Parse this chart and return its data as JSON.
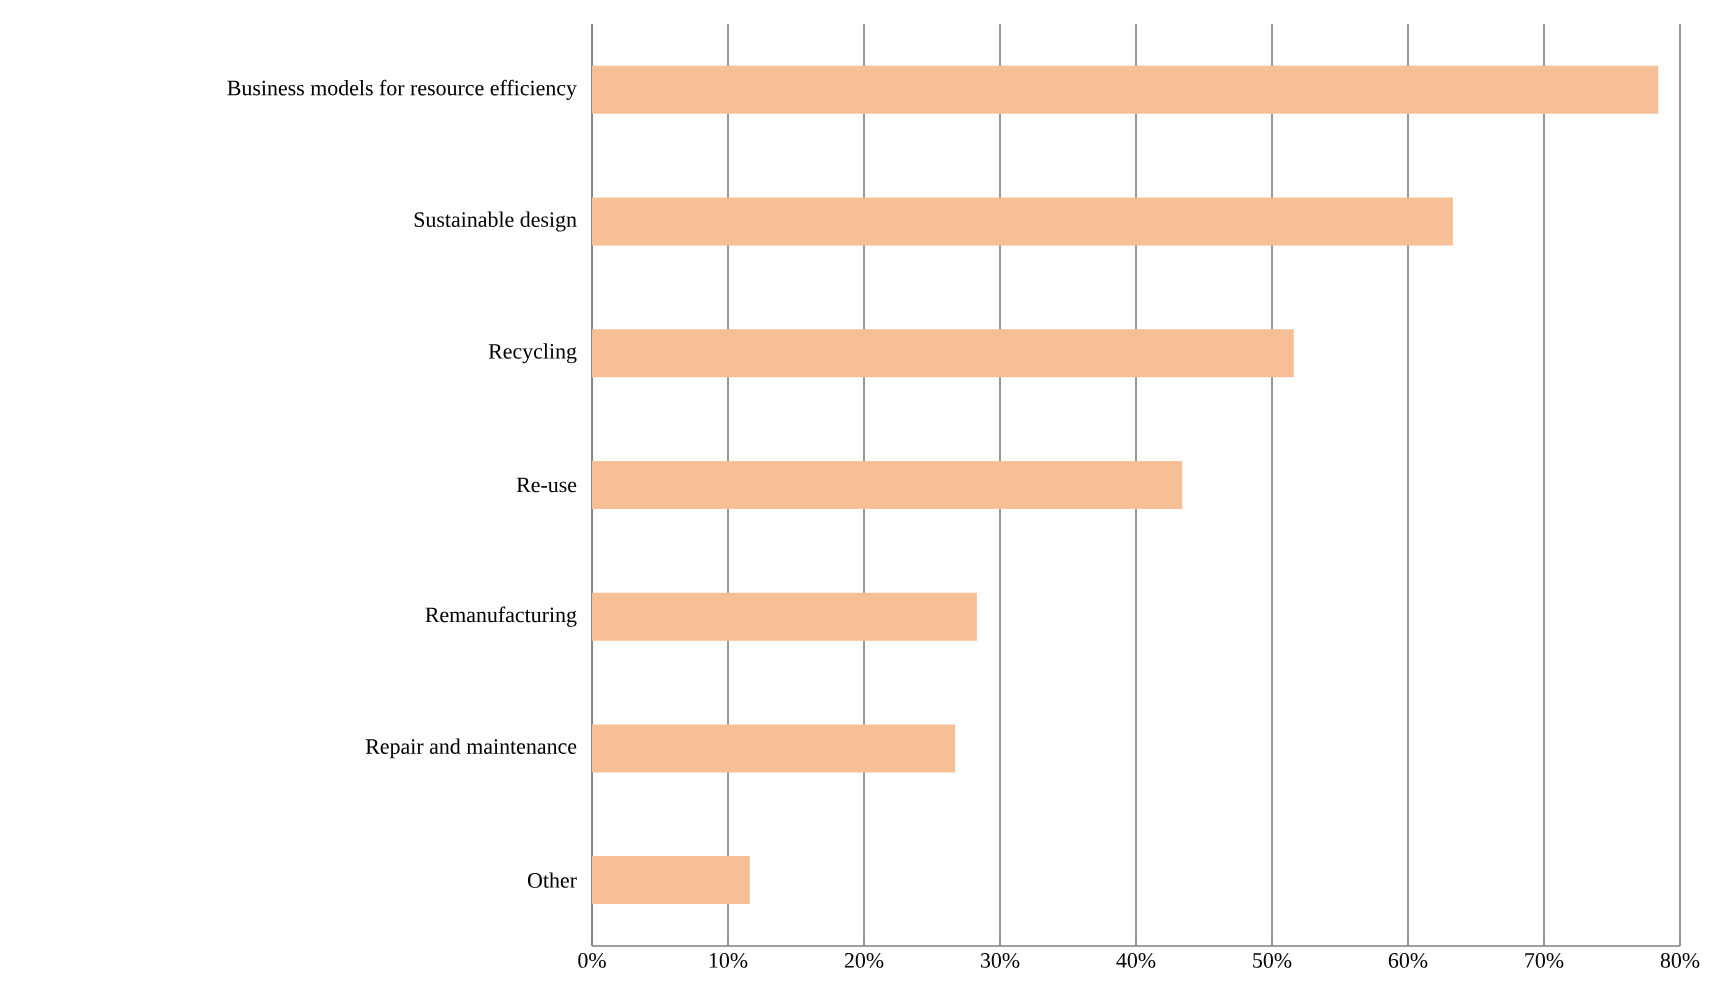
{
  "chart_data": {
    "type": "bar",
    "orientation": "horizontal",
    "categories": [
      "Business models for resource efficiency",
      "Sustainable design",
      "Recycling",
      "Re-use",
      "Remanufacturing",
      "Repair and maintenance",
      "Other"
    ],
    "values": [
      78.4,
      63.3,
      51.6,
      43.4,
      28.3,
      26.7,
      11.6
    ],
    "color": "#f6bf96",
    "xlim": [
      0,
      80
    ],
    "xticks": [
      {
        "value": 0,
        "label": "0%"
      },
      {
        "value": 10,
        "label": "10%"
      },
      {
        "value": 20,
        "label": "20%"
      },
      {
        "value": 30,
        "label": "30%"
      },
      {
        "value": 40,
        "label": "40%"
      },
      {
        "value": 50,
        "label": "50%"
      },
      {
        "value": 60,
        "label": "60%"
      },
      {
        "value": 70,
        "label": "70%"
      },
      {
        "value": 80,
        "label": "80%"
      }
    ],
    "grid": "x"
  }
}
